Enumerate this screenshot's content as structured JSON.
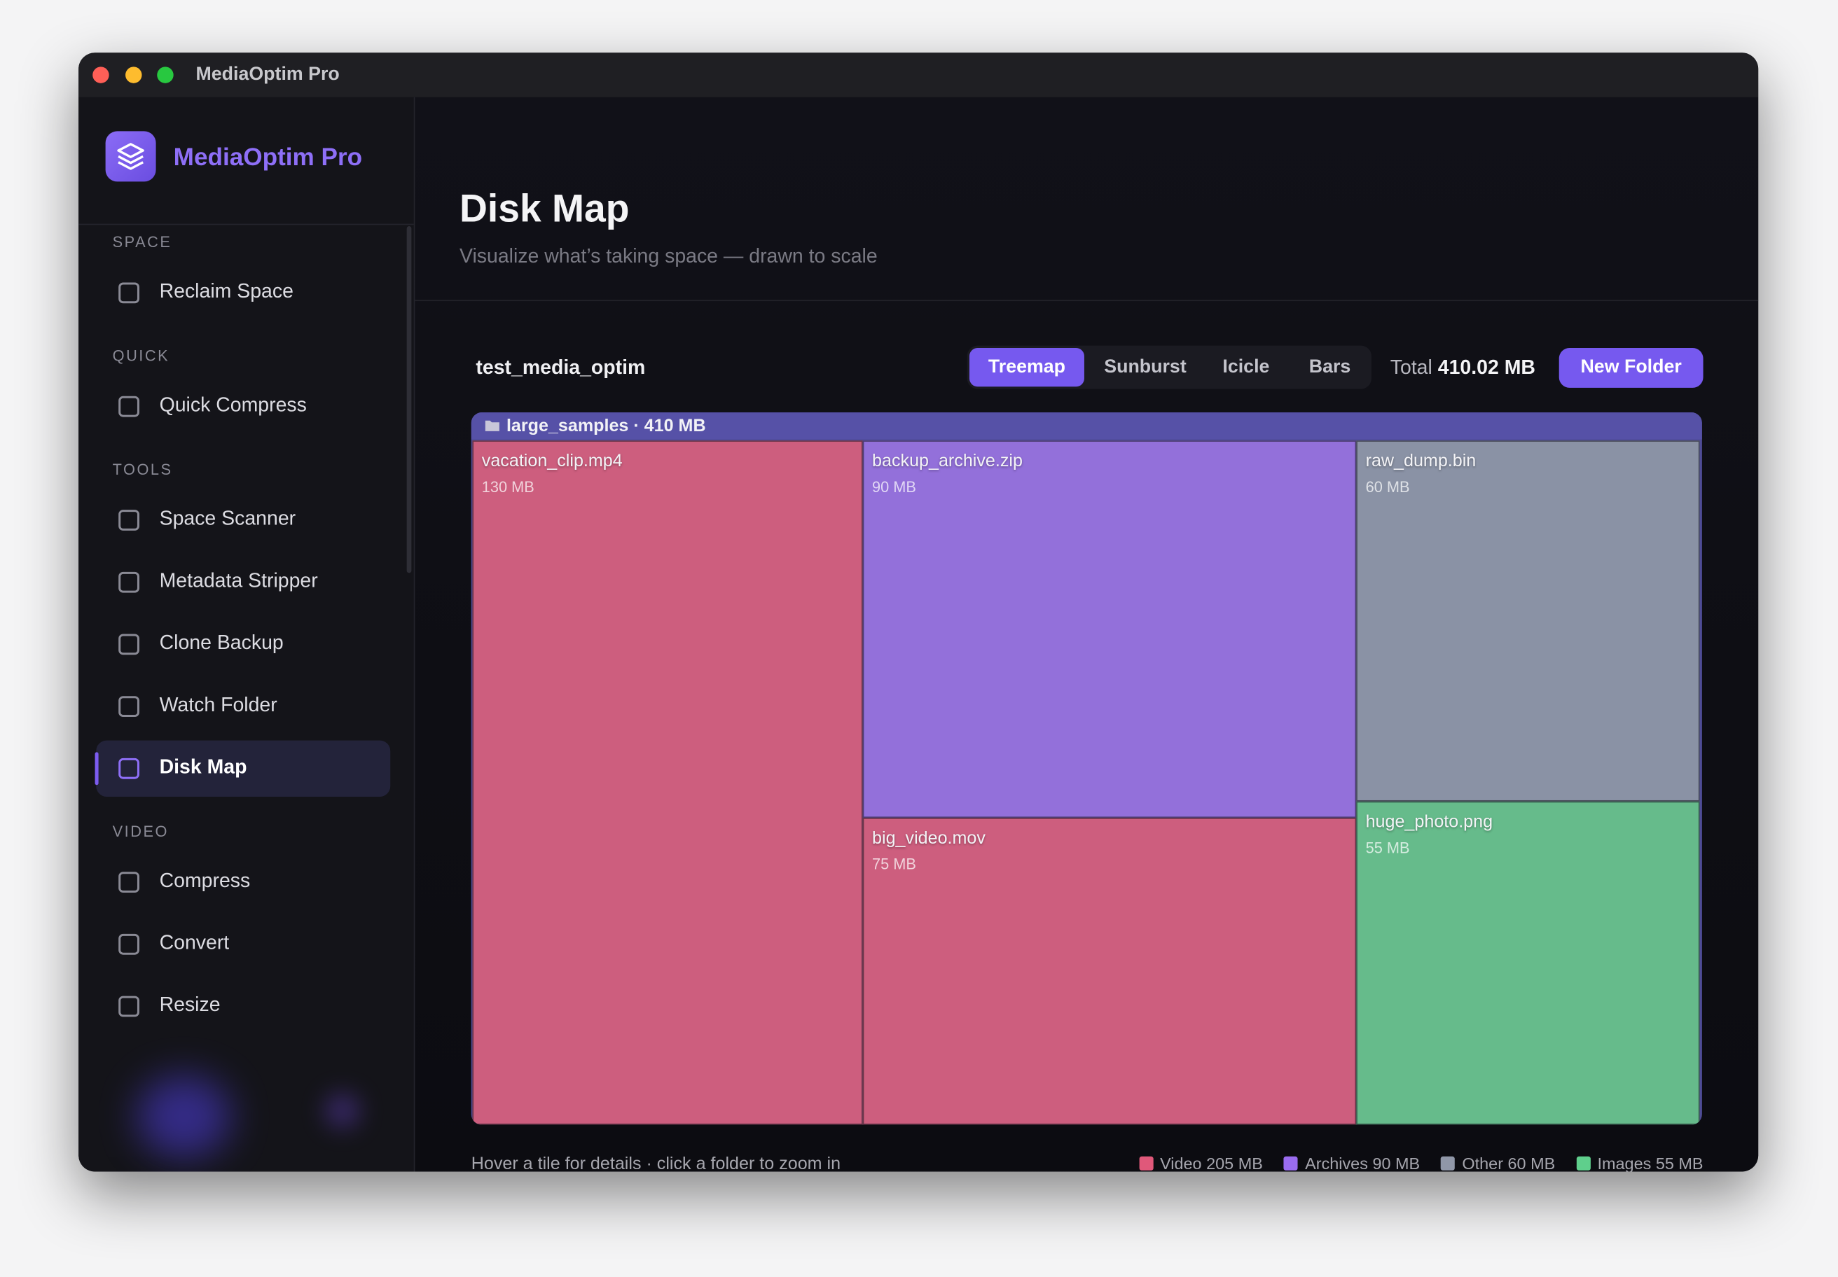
{
  "window": {
    "title": "MediaOptim Pro"
  },
  "sidebar": {
    "app_name": "MediaOptim Pro",
    "sections": [
      {
        "heading": "SPACE",
        "items": [
          {
            "label": "Reclaim Space"
          }
        ]
      },
      {
        "heading": "QUICK",
        "items": [
          {
            "label": "Quick Compress"
          }
        ]
      },
      {
        "heading": "TOOLS",
        "items": [
          {
            "label": "Space Scanner"
          },
          {
            "label": "Metadata Stripper"
          },
          {
            "label": "Clone Backup"
          },
          {
            "label": "Watch Folder"
          },
          {
            "label": "Disk Map",
            "active": true
          }
        ]
      },
      {
        "heading": "VIDEO",
        "items": [
          {
            "label": "Compress"
          },
          {
            "label": "Convert"
          },
          {
            "label": "Resize"
          }
        ]
      }
    ]
  },
  "header": {
    "title": "Disk Map",
    "subtitle": "Visualize what’s taking space — drawn to scale"
  },
  "toolbar": {
    "folder": "test_media_optim",
    "views": [
      "Treemap",
      "Sunburst",
      "Icicle",
      "Bars"
    ],
    "active_view": 0,
    "total_label": "Total",
    "total_value": "410.02 MB",
    "button": "New Folder"
  },
  "treemap": {
    "root": "large_samples · 410 MB",
    "tiles": [
      {
        "name": "vacation_clip.mp4",
        "size": "130 MB",
        "color": "#cd5e7e"
      },
      {
        "name": "backup_archive.zip",
        "size": "90 MB",
        "color": "#9370da"
      },
      {
        "name": "big_video.mov",
        "size": "75 MB",
        "color": "#cd5e7e"
      },
      {
        "name": "raw_dump.bin",
        "size": "60 MB",
        "color": "#8a92a5"
      },
      {
        "name": "huge_photo.png",
        "size": "55 MB",
        "color": "#66bb8b"
      }
    ]
  },
  "footer": {
    "hint": "Hover a tile for details · click a folder to zoom in",
    "legend": [
      {
        "label": "Video 205 MB",
        "color": "#e0587a"
      },
      {
        "label": "Archives 90 MB",
        "color": "#9a6cf0"
      },
      {
        "label": "Other 60 MB",
        "color": "#9097a8"
      },
      {
        "label": "Images 55 MB",
        "color": "#5fcf8c"
      }
    ]
  }
}
